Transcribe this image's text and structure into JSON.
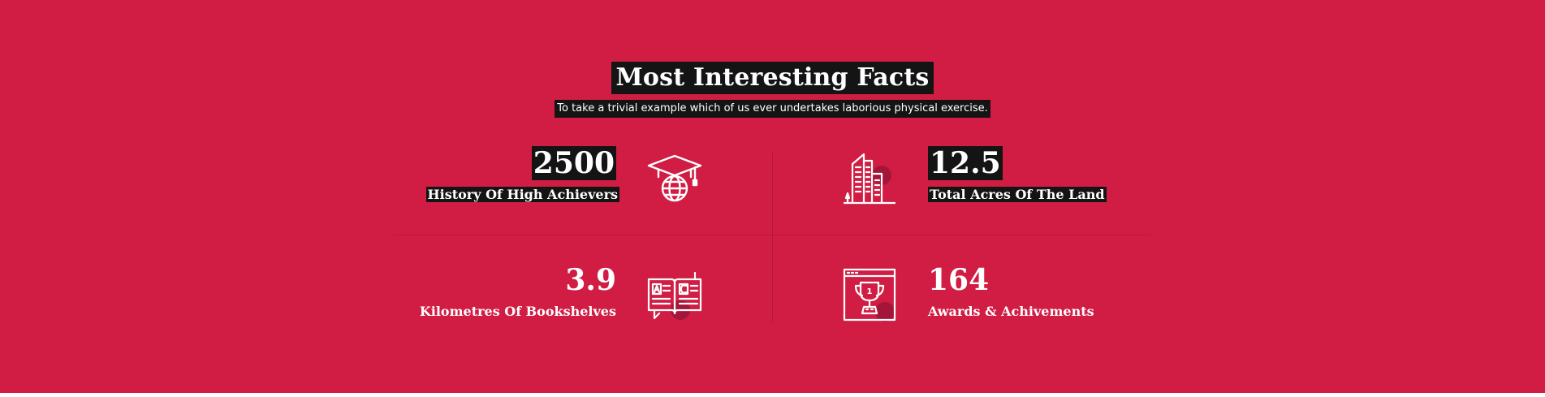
{
  "section": {
    "title": "Most Interesting Facts",
    "subtitle": "To take a trivial example which of us ever undertakes laborious physical exercise."
  },
  "facts": [
    {
      "value": "2500",
      "label": "History Of High Achievers",
      "icon": "graduation-globe-icon"
    },
    {
      "value": "12.5",
      "label": "Total Acres Of The Land",
      "icon": "buildings-icon"
    },
    {
      "value": "3.9",
      "label": "Kilometres Of Bookshelves",
      "icon": "open-book-icon"
    },
    {
      "value": "164",
      "label": "Awards & Achivements",
      "icon": "trophy-certificate-icon"
    }
  ],
  "colors": {
    "background": "#d11d43",
    "text": "#ffffff",
    "highlight": "#141414",
    "icon_accent": "#a3163a"
  }
}
